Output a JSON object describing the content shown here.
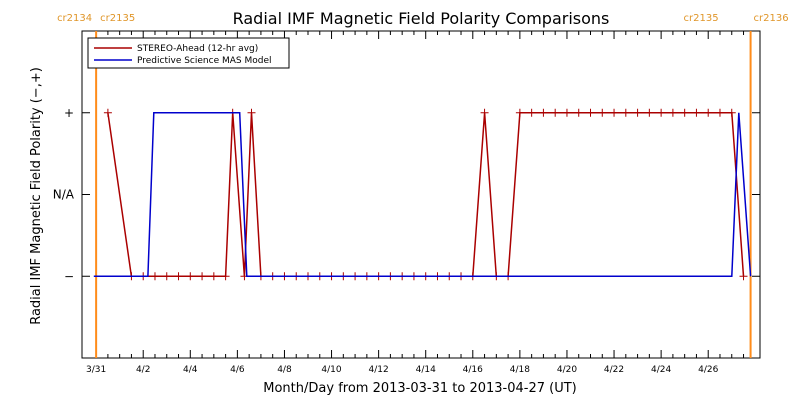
{
  "chart_data": {
    "type": "line",
    "title": "Radial IMF Magnetic Field Polarity Comparisons",
    "xlabel": "Month/Day from 2013-03-31 to 2013-04-27 (UT)",
    "ylabel": "Radial IMF Magnetic Field Polarity (−,+)",
    "x_unit": "day of year 2013 (3/31 = 0)",
    "xlim": [
      -0.6,
      28.2
    ],
    "ylim": [
      -2,
      2
    ],
    "x_ticks": [
      {
        "value": 0,
        "label": "3/31"
      },
      {
        "value": 2,
        "label": "4/2"
      },
      {
        "value": 4,
        "label": "4/4"
      },
      {
        "value": 6,
        "label": "4/6"
      },
      {
        "value": 8,
        "label": "4/8"
      },
      {
        "value": 10,
        "label": "4/10"
      },
      {
        "value": 12,
        "label": "4/12"
      },
      {
        "value": 14,
        "label": "4/14"
      },
      {
        "value": 16,
        "label": "4/16"
      },
      {
        "value": 18,
        "label": "4/18"
      },
      {
        "value": 20,
        "label": "4/20"
      },
      {
        "value": 22,
        "label": "4/22"
      },
      {
        "value": 24,
        "label": "4/24"
      },
      {
        "value": 26,
        "label": "4/26"
      }
    ],
    "y_ticks": [
      {
        "value": 1,
        "label": "+"
      },
      {
        "value": 0,
        "label": "N/A"
      },
      {
        "value": -1,
        "label": "−"
      }
    ],
    "legend": "top-left",
    "carrington_markers": [
      {
        "x": 0.0,
        "labels": [
          "cr2134",
          "cr2135"
        ],
        "side": "left"
      },
      {
        "x": 27.8,
        "labels": [
          "cr2135",
          "cr2136"
        ],
        "side": "right"
      }
    ],
    "series": [
      {
        "name": "STEREO-Ahead (12-hr avg)",
        "color": "#aa0000",
        "markers": true,
        "x": [
          0.5,
          1.5,
          2.0,
          2.5,
          3.0,
          3.5,
          4.0,
          4.5,
          5.0,
          5.5,
          5.8,
          6.3,
          6.6,
          7.0,
          7.5,
          8.0,
          8.5,
          9.0,
          9.5,
          10.0,
          10.5,
          11.0,
          11.5,
          12.0,
          12.5,
          13.0,
          13.5,
          14.0,
          14.5,
          15.0,
          15.5,
          16.0,
          16.5,
          17.0,
          17.5,
          18.0,
          18.5,
          19.0,
          19.5,
          20.0,
          20.5,
          21.0,
          21.5,
          22.0,
          22.5,
          23.0,
          23.5,
          24.0,
          24.5,
          25.0,
          25.5,
          26.0,
          26.5,
          27.0,
          27.5
        ],
        "y": [
          1,
          -1,
          -1,
          -1,
          -1,
          -1,
          -1,
          -1,
          -1,
          -1,
          1,
          -1,
          1,
          -1,
          -1,
          -1,
          -1,
          -1,
          -1,
          -1,
          -1,
          -1,
          -1,
          -1,
          -1,
          -1,
          -1,
          -1,
          -1,
          -1,
          -1,
          -1,
          1,
          -1,
          -1,
          1,
          1,
          1,
          1,
          1,
          1,
          1,
          1,
          1,
          1,
          1,
          1,
          1,
          1,
          1,
          1,
          1,
          1,
          1,
          -1
        ]
      },
      {
        "name": "Predictive Science MAS Model",
        "color": "#0000cc",
        "markers": false,
        "x": [
          -0.1,
          2.2,
          2.45,
          6.1,
          6.4,
          27.0,
          27.3,
          27.8
        ],
        "y": [
          -1,
          -1,
          1,
          1,
          -1,
          -1,
          1,
          -1
        ]
      }
    ]
  },
  "colors": {
    "marker_line": "#ff8c1a",
    "marker_text": "#e0962a",
    "axis": "#000000"
  }
}
